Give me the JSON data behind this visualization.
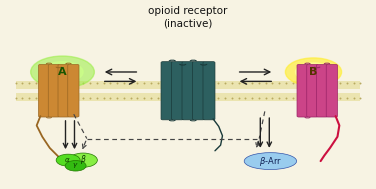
{
  "bg_color": "#f7f3e3",
  "title": "opioid receptor\n(inactive)",
  "title_fontsize": 7.5,
  "mem_color": "#e8dfa0",
  "mem_dot_color": "#b8aa60",
  "inactive_color": "#2d6060",
  "inactive_dark": "#1a3a3a",
  "receptor_A_color": "#cc8833",
  "receptor_A_dark": "#996622",
  "receptor_A_glow_outer": "#99ee44",
  "receptor_A_glow_inner": "#ccff88",
  "receptor_B_color": "#cc4488",
  "receptor_B_dark": "#992266",
  "receptor_B_glow_outer": "#ffee33",
  "receptor_B_glow_inner": "#ffff99",
  "G_alpha_color": "#55dd22",
  "G_beta_color": "#88ee44",
  "G_gamma_color": "#33bb11",
  "beta_arr_color": "#99ccee",
  "arrow_color": "#222222",
  "dashed_color": "#444444",
  "label_A": "A",
  "label_B": "B"
}
